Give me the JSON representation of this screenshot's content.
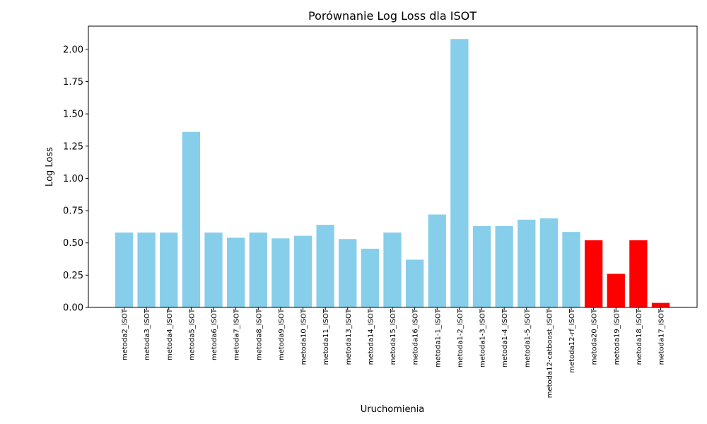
{
  "chart_data": {
    "type": "bar",
    "title": "Porównanie Log Loss dla ISOT",
    "xlabel": "Uruchomienia",
    "ylabel": "Log Loss",
    "ylim": [
      0,
      2.18
    ],
    "yticks": [
      "0.00",
      "0.25",
      "0.50",
      "0.75",
      "1.00",
      "1.25",
      "1.50",
      "1.75",
      "2.00"
    ],
    "grid": false,
    "categories": [
      "metoda2_ISOT",
      "metoda3_ISOT",
      "metoda4_ISOT",
      "metoda5_ISOT",
      "metoda6_ISOT",
      "metoda7_ISOT",
      "metoda8_ISOT",
      "metoda9_ISOT",
      "metoda10_ISOT",
      "metoda11_ISOT",
      "metoda13_ISOT",
      "metoda14_ISOT",
      "metoda15_ISOT",
      "metoda16_ISOT",
      "metoda1-1_ISOT",
      "metoda1-2_ISOT",
      "metoda1-3_ISOT",
      "metoda1-4_ISOT",
      "metoda1-5_ISOT",
      "metoda12-catboost_ISOT",
      "metoda12-rf_ISOT",
      "metoda20_ISOT",
      "metoda19_ISOT",
      "metoda18_ISOT",
      "metoda17_ISOT"
    ],
    "values": [
      0.58,
      0.58,
      0.58,
      1.36,
      0.58,
      0.54,
      0.58,
      0.535,
      0.555,
      0.64,
      0.53,
      0.455,
      0.58,
      0.37,
      0.72,
      2.08,
      0.63,
      0.63,
      0.68,
      0.69,
      0.585,
      0.52,
      0.26,
      0.52,
      0.035
    ],
    "colors": [
      "#87ceeb",
      "#87ceeb",
      "#87ceeb",
      "#87ceeb",
      "#87ceeb",
      "#87ceeb",
      "#87ceeb",
      "#87ceeb",
      "#87ceeb",
      "#87ceeb",
      "#87ceeb",
      "#87ceeb",
      "#87ceeb",
      "#87ceeb",
      "#87ceeb",
      "#87ceeb",
      "#87ceeb",
      "#87ceeb",
      "#87ceeb",
      "#87ceeb",
      "#87ceeb",
      "#ff0000",
      "#ff0000",
      "#ff0000",
      "#ff0000"
    ]
  }
}
